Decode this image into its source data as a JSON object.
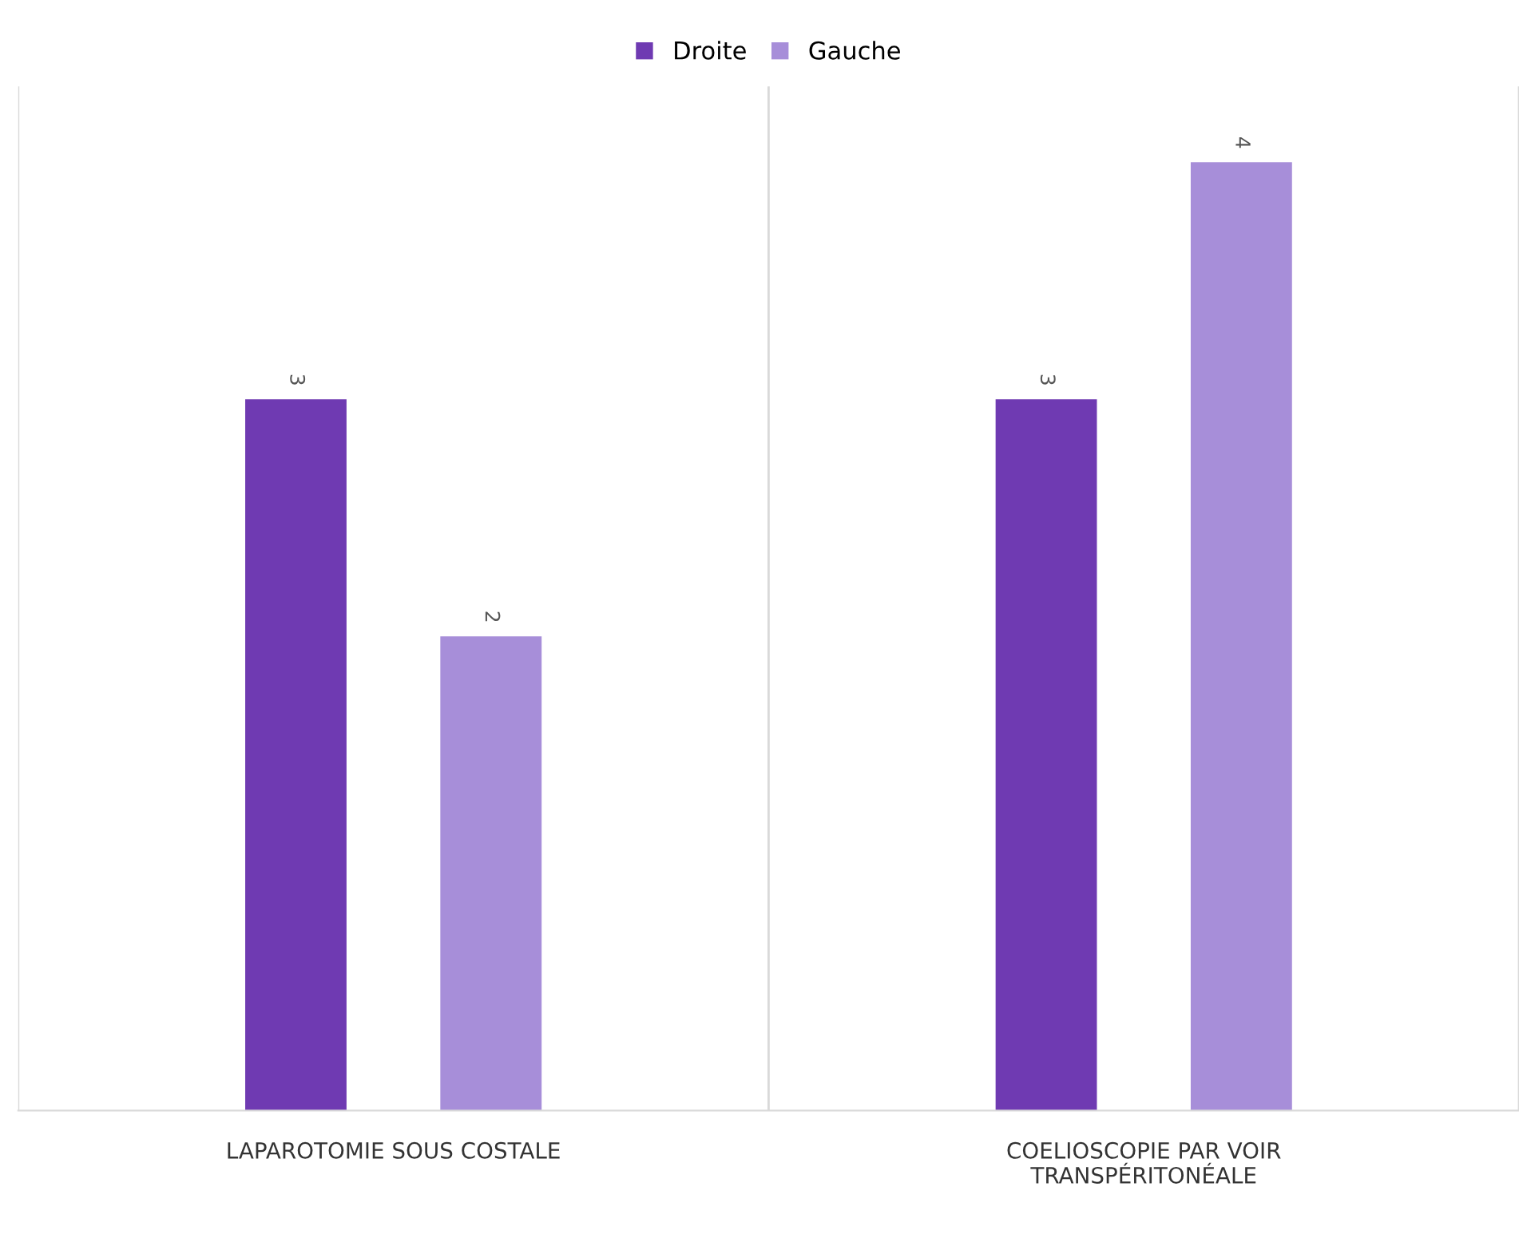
{
  "chart_data": {
    "type": "bar",
    "categories": [
      "LAPAROTOMIE SOUS COSTALE",
      "COELIOSCOPIE PAR VOIR\nTRANSPÉRITONÉALE"
    ],
    "series": [
      {
        "name": "Droite",
        "color": "#6f3ab2",
        "values": [
          3,
          3
        ]
      },
      {
        "name": "Gauche",
        "color": "#a78ed9",
        "values": [
          2,
          4
        ]
      }
    ],
    "data_labels": true,
    "legend": "top",
    "grid": "x",
    "tick_labels": "x"
  }
}
